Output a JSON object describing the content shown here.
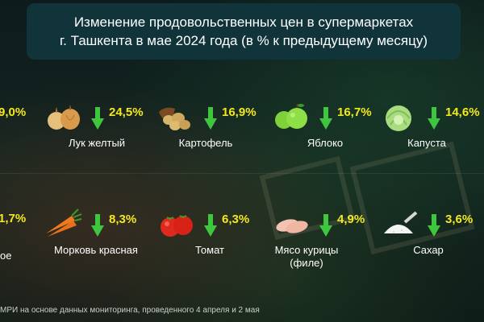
{
  "title": {
    "line1": "Изменение продовольственных цен в супермаркетах",
    "line2": "г. Ташкента в мае 2024 года (в % к предыдущему месяцу)"
  },
  "colors": {
    "accent_yellow": "#f4e81f",
    "arrow_green": "#3fc63f",
    "title_bg": "#10343a"
  },
  "partial_left": [
    {
      "pct": "9,0%"
    },
    {
      "pct": "1,7%",
      "label": "ое"
    }
  ],
  "row1": [
    {
      "icon": "onion-icon",
      "pct": "24,5%",
      "label": "Лук желтый"
    },
    {
      "icon": "potato-icon",
      "pct": "16,9%",
      "label": "Картофель"
    },
    {
      "icon": "apple-icon",
      "pct": "16,7%",
      "label": "Яблоко"
    },
    {
      "icon": "cabbage-icon",
      "pct": "14,6%",
      "label": "Капуста"
    }
  ],
  "row2": [
    {
      "icon": "carrot-icon",
      "pct": "8,3%",
      "label": "Морковь красная"
    },
    {
      "icon": "tomato-icon",
      "pct": "6,3%",
      "label": "Томат"
    },
    {
      "icon": "chicken-icon",
      "pct": "4,9%",
      "label": "Мясо курицы (филе)"
    },
    {
      "icon": "sugar-icon",
      "pct": "3,6%",
      "label": "Сахар"
    }
  ],
  "source": "МРИ на основе данных мониторинга, проведенного 4 апреля и 2 мая"
}
